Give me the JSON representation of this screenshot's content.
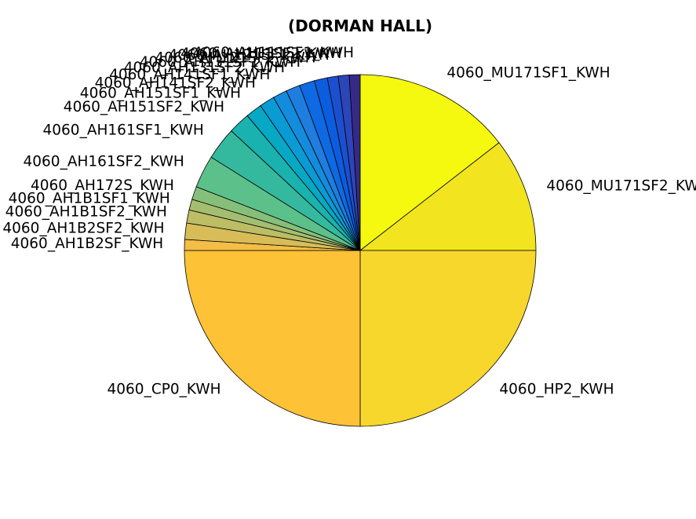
{
  "chart_data": {
    "type": "pie",
    "title": "(DORMAN HALL)",
    "start_angle_deg": 90,
    "direction": "clockwise",
    "slices": [
      {
        "label": "4060_MU171SF1_KWH",
        "value": 14.5,
        "color": "#f4f90f"
      },
      {
        "label": "4060_MU171SF2_KWH",
        "value": 10.5,
        "color": "#f2e51f"
      },
      {
        "label": "4060_HP2_KWH",
        "value": 25.0,
        "color": "#f7d72b"
      },
      {
        "label": "4060_CP0_KWH",
        "value": 25.0,
        "color": "#fdc236"
      },
      {
        "label": "4060_AH1B2SF_KWH",
        "value": 1.0,
        "color": "#f3bd48"
      },
      {
        "label": "4060_AH1B2SF2_KWH",
        "value": 1.5,
        "color": "#d7bc57"
      },
      {
        "label": "4060_AH1B1SF2_KWH",
        "value": 1.2,
        "color": "#bcbd64"
      },
      {
        "label": "4060_AH1B1SF1_KWH",
        "value": 1.0,
        "color": "#a3be70"
      },
      {
        "label": "4060_AH172S_KWH",
        "value": 1.2,
        "color": "#87bf7a"
      },
      {
        "label": "4060_AH161SF2_KWH",
        "value": 3.0,
        "color": "#5cc08b"
      },
      {
        "label": "4060_AH161SF1_KWH",
        "value": 3.0,
        "color": "#34b99e"
      },
      {
        "label": "4060_AH151SF2_KWH",
        "value": 2.0,
        "color": "#1ab2ae"
      },
      {
        "label": "4060_AH151SF1_KWH",
        "value": 1.5,
        "color": "#06a8c3"
      },
      {
        "label": "4060_AH141SF2_KWH",
        "value": 1.4,
        "color": "#0a9bd5"
      },
      {
        "label": "4060_AH141SF1_KWH",
        "value": 1.3,
        "color": "#148cdd"
      },
      {
        "label": "4060_AH131SF2_KWH",
        "value": 1.3,
        "color": "#1e7ddf"
      },
      {
        "label": "4060_AH131SF1_KWH",
        "value": 1.4,
        "color": "#0d6ae3"
      },
      {
        "label": "4060_AH121SF2_KWH",
        "value": 1.2,
        "color": "#0b5cdf"
      },
      {
        "label": "4060_AH121SF1_KWH",
        "value": 1.0,
        "color": "#1a50d0"
      },
      {
        "label": "4060_AH111SF2_KWH",
        "value": 1.0,
        "color": "#2c45b8"
      },
      {
        "label": "4060_AH111SF1_KWH",
        "value": 1.0,
        "color": "#352a87"
      }
    ]
  }
}
